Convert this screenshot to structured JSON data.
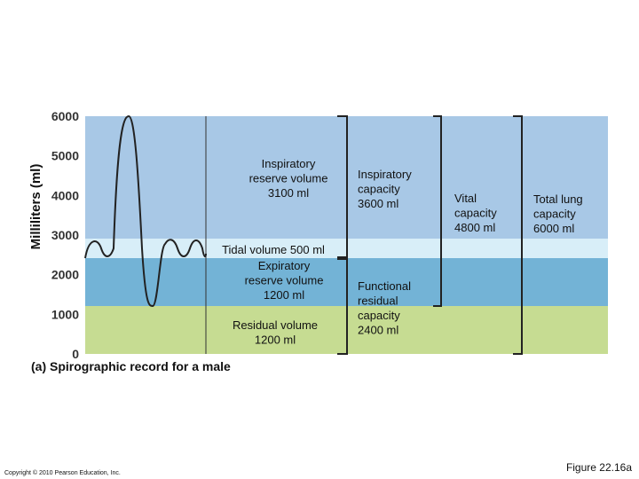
{
  "axis": {
    "label": "Milliliters (ml)",
    "ticks": [
      6000,
      5000,
      4000,
      3000,
      2000,
      1000,
      0
    ]
  },
  "volumes": {
    "inspiratory_reserve": [
      "Inspiratory",
      "reserve volume",
      "3100 ml"
    ],
    "tidal": [
      "Tidal volume 500 ml"
    ],
    "expiratory_reserve": [
      "Expiratory",
      "reserve volume",
      "1200 ml"
    ],
    "residual": [
      "Residual volume",
      "1200 ml"
    ]
  },
  "capacities": {
    "inspiratory": [
      "Inspiratory",
      "capacity",
      "3600 ml"
    ],
    "functional_residual": [
      "Functional",
      "residual",
      "capacity",
      "2400 ml"
    ],
    "vital": [
      "Vital",
      "capacity",
      "4800 ml"
    ],
    "total_lung": [
      "Total lung",
      "capacity",
      "6000 ml"
    ]
  },
  "caption": "(a) Spirographic record for a male",
  "copyright": "Copyright © 2010 Pearson Education, Inc.",
  "figure": "Figure 22.16a"
}
